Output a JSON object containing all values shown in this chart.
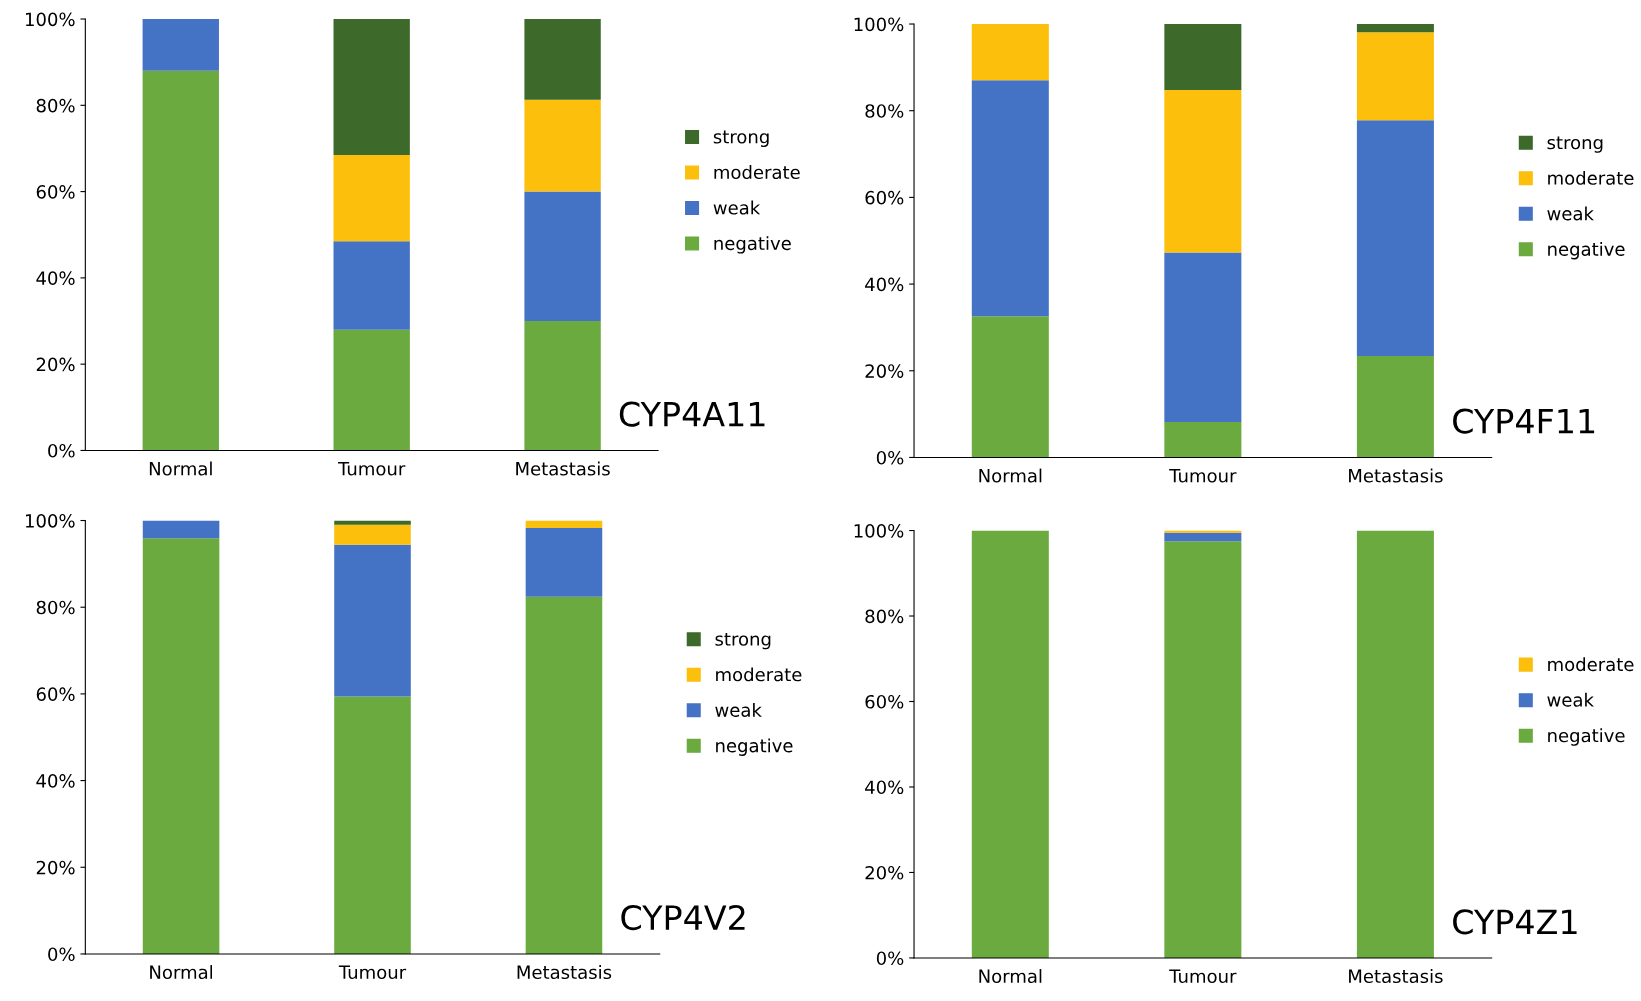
{
  "chart_data": [
    {
      "type": "bar",
      "stacked": true,
      "title": "CYP4A11",
      "categories": [
        "Normal",
        "Tumour",
        "Metastasis"
      ],
      "ylim": [
        0,
        100
      ],
      "yticks": [
        {
          "value": 0,
          "label": "0%"
        },
        {
          "value": 20,
          "label": "20%"
        },
        {
          "value": 40,
          "label": "40%"
        },
        {
          "value": 60,
          "label": "60%"
        },
        {
          "value": 80,
          "label": "80%"
        },
        {
          "value": 100,
          "label": "100%"
        }
      ],
      "legend": "right",
      "grid": false,
      "series": [
        {
          "name": "negative",
          "color": "#6aaa3f",
          "values": [
            88,
            28,
            30
          ]
        },
        {
          "name": "weak",
          "color": "#4472c4",
          "values": [
            12,
            20.5,
            30
          ]
        },
        {
          "name": "moderate",
          "color": "#fbbf0c",
          "values": [
            0,
            20,
            21.3
          ]
        },
        {
          "name": "strong",
          "color": "#3d6a2a",
          "values": [
            0,
            31.5,
            18.7
          ]
        }
      ]
    },
    {
      "type": "bar",
      "stacked": true,
      "title": "CYP4F11",
      "categories": [
        "Normal",
        "Tumour",
        "Metastasis"
      ],
      "ylim": [
        0,
        100
      ],
      "yticks": [
        {
          "value": 0,
          "label": "0%"
        },
        {
          "value": 20,
          "label": "20%"
        },
        {
          "value": 40,
          "label": "40%"
        },
        {
          "value": 60,
          "label": "60%"
        },
        {
          "value": 80,
          "label": "80%"
        },
        {
          "value": 100,
          "label": "100%"
        }
      ],
      "legend": "right",
      "grid": false,
      "series": [
        {
          "name": "negative",
          "color": "#6aaa3f",
          "values": [
            32.6,
            8.2,
            23.4
          ]
        },
        {
          "name": "weak",
          "color": "#4472c4",
          "values": [
            54.4,
            39.1,
            54.4
          ]
        },
        {
          "name": "moderate",
          "color": "#fbbf0c",
          "values": [
            13,
            37.5,
            20.3
          ]
        },
        {
          "name": "strong",
          "color": "#3d6a2a",
          "values": [
            0,
            15.2,
            1.9
          ]
        }
      ]
    },
    {
      "type": "bar",
      "stacked": true,
      "title": "CYP4V2",
      "categories": [
        "Normal",
        "Tumour",
        "Metastasis"
      ],
      "ylim": [
        0,
        100
      ],
      "yticks": [
        {
          "value": 0,
          "label": "0%"
        },
        {
          "value": 20,
          "label": "20%"
        },
        {
          "value": 40,
          "label": "40%"
        },
        {
          "value": 60,
          "label": "60%"
        },
        {
          "value": 80,
          "label": "80%"
        },
        {
          "value": 100,
          "label": "100%"
        }
      ],
      "legend": "right",
      "grid": false,
      "series": [
        {
          "name": "negative",
          "color": "#6aaa3f",
          "values": [
            95.9,
            59.4,
            82.4
          ]
        },
        {
          "name": "weak",
          "color": "#4472c4",
          "values": [
            4.1,
            35,
            15.9
          ]
        },
        {
          "name": "moderate",
          "color": "#fbbf0c",
          "values": [
            0,
            4.6,
            1.7
          ]
        },
        {
          "name": "strong",
          "color": "#3d6a2a",
          "values": [
            0,
            1,
            0
          ]
        }
      ]
    },
    {
      "type": "bar",
      "stacked": true,
      "title": "CYP4Z1",
      "categories": [
        "Normal",
        "Tumour",
        "Metastasis"
      ],
      "ylim": [
        0,
        100
      ],
      "yticks": [
        {
          "value": 0,
          "label": "0%"
        },
        {
          "value": 20,
          "label": "20%"
        },
        {
          "value": 40,
          "label": "40%"
        },
        {
          "value": 60,
          "label": "60%"
        },
        {
          "value": 80,
          "label": "80%"
        },
        {
          "value": 100,
          "label": "100%"
        }
      ],
      "legend": "right",
      "grid": false,
      "series": [
        {
          "name": "negative",
          "color": "#6aaa3f",
          "values": [
            100,
            97.5,
            100
          ]
        },
        {
          "name": "weak",
          "color": "#4472c4",
          "values": [
            0,
            2,
            0
          ]
        },
        {
          "name": "moderate",
          "color": "#fbbf0c",
          "values": [
            0,
            0.5,
            0
          ]
        }
      ]
    }
  ]
}
